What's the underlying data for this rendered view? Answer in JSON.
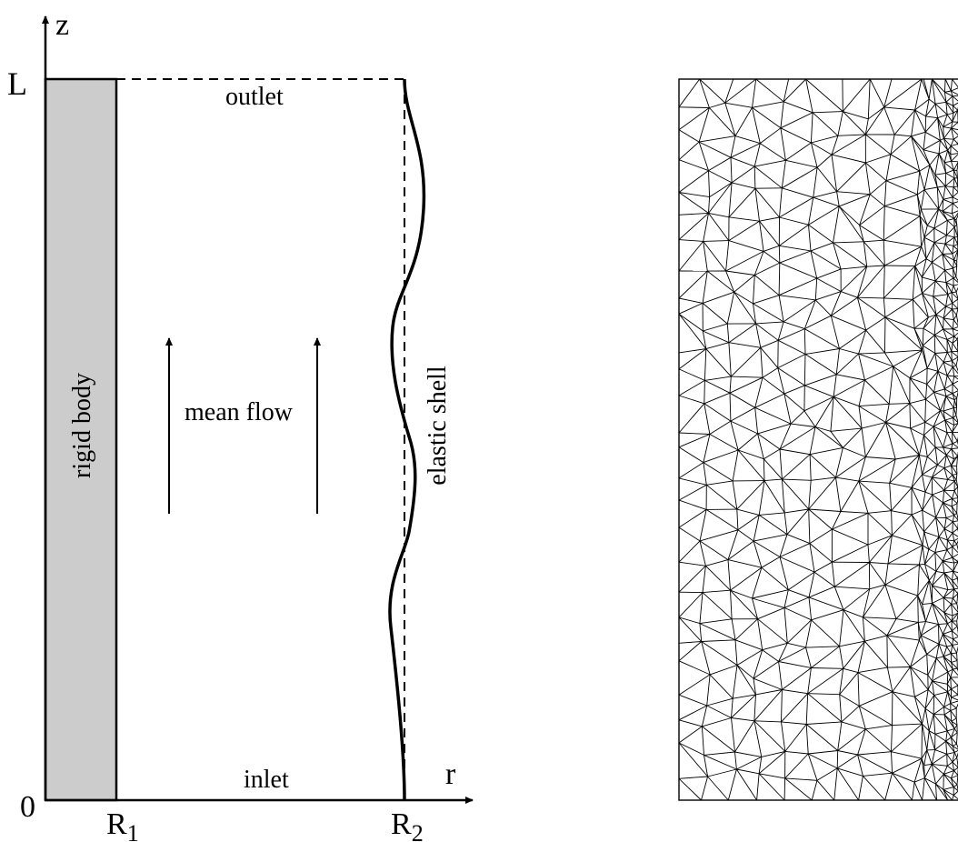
{
  "schematic": {
    "axis_z_label": "z",
    "axis_r_label": "r",
    "tick_L": "L",
    "tick_zero": "0",
    "tick_R1": "R",
    "tick_R1_sub": "1",
    "tick_R2": "R",
    "tick_R2_sub": "2",
    "outlet_label": "outlet",
    "inlet_label": "inlet",
    "rigid_body_label": "rigid body",
    "mean_flow_label": "mean flow",
    "elastic_shell_label": "elastic shell",
    "rigid_body_fill": "#cccccc"
  },
  "mesh": {
    "description_icon": "triangular-mesh",
    "refined_toward_right_edge": true
  }
}
